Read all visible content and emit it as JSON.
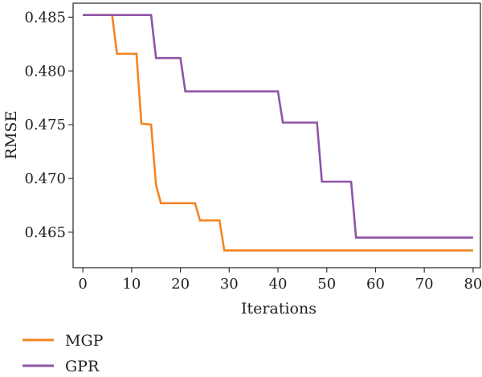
{
  "chart_data": {
    "type": "line",
    "title": "",
    "xlabel": "Iterations",
    "ylabel": "RMSE",
    "xlim": [
      -2,
      81.5
    ],
    "ylim": [
      0.4617,
      0.4863
    ],
    "xticks": [
      0,
      10,
      20,
      30,
      40,
      50,
      60,
      70,
      80
    ],
    "yticks": [
      0.465,
      0.47,
      0.475,
      0.48,
      0.485
    ],
    "ytick_labels": [
      "0.465",
      "0.470",
      "0.475",
      "0.480",
      "0.485"
    ],
    "grid": false,
    "legend_position": "bottom-left",
    "series": [
      {
        "name": "MGP",
        "color": "#f28523",
        "points": [
          [
            0,
            0.4852
          ],
          [
            6,
            0.4852
          ],
          [
            7,
            0.4816
          ],
          [
            11,
            0.4816
          ],
          [
            12,
            0.4751
          ],
          [
            14,
            0.475
          ],
          [
            15,
            0.4694
          ],
          [
            16,
            0.4677
          ],
          [
            23,
            0.4677
          ],
          [
            24,
            0.4661
          ],
          [
            28,
            0.4661
          ],
          [
            29,
            0.4633
          ],
          [
            80,
            0.4633
          ]
        ]
      },
      {
        "name": "GPR",
        "color": "#8e55a8",
        "points": [
          [
            0,
            0.4852
          ],
          [
            14,
            0.4852
          ],
          [
            15,
            0.4812
          ],
          [
            20,
            0.4812
          ],
          [
            21,
            0.4781
          ],
          [
            40,
            0.4781
          ],
          [
            41,
            0.4752
          ],
          [
            48,
            0.4752
          ],
          [
            49,
            0.4697
          ],
          [
            55,
            0.4697
          ],
          [
            56,
            0.4645
          ],
          [
            80,
            0.4645
          ]
        ]
      }
    ]
  }
}
